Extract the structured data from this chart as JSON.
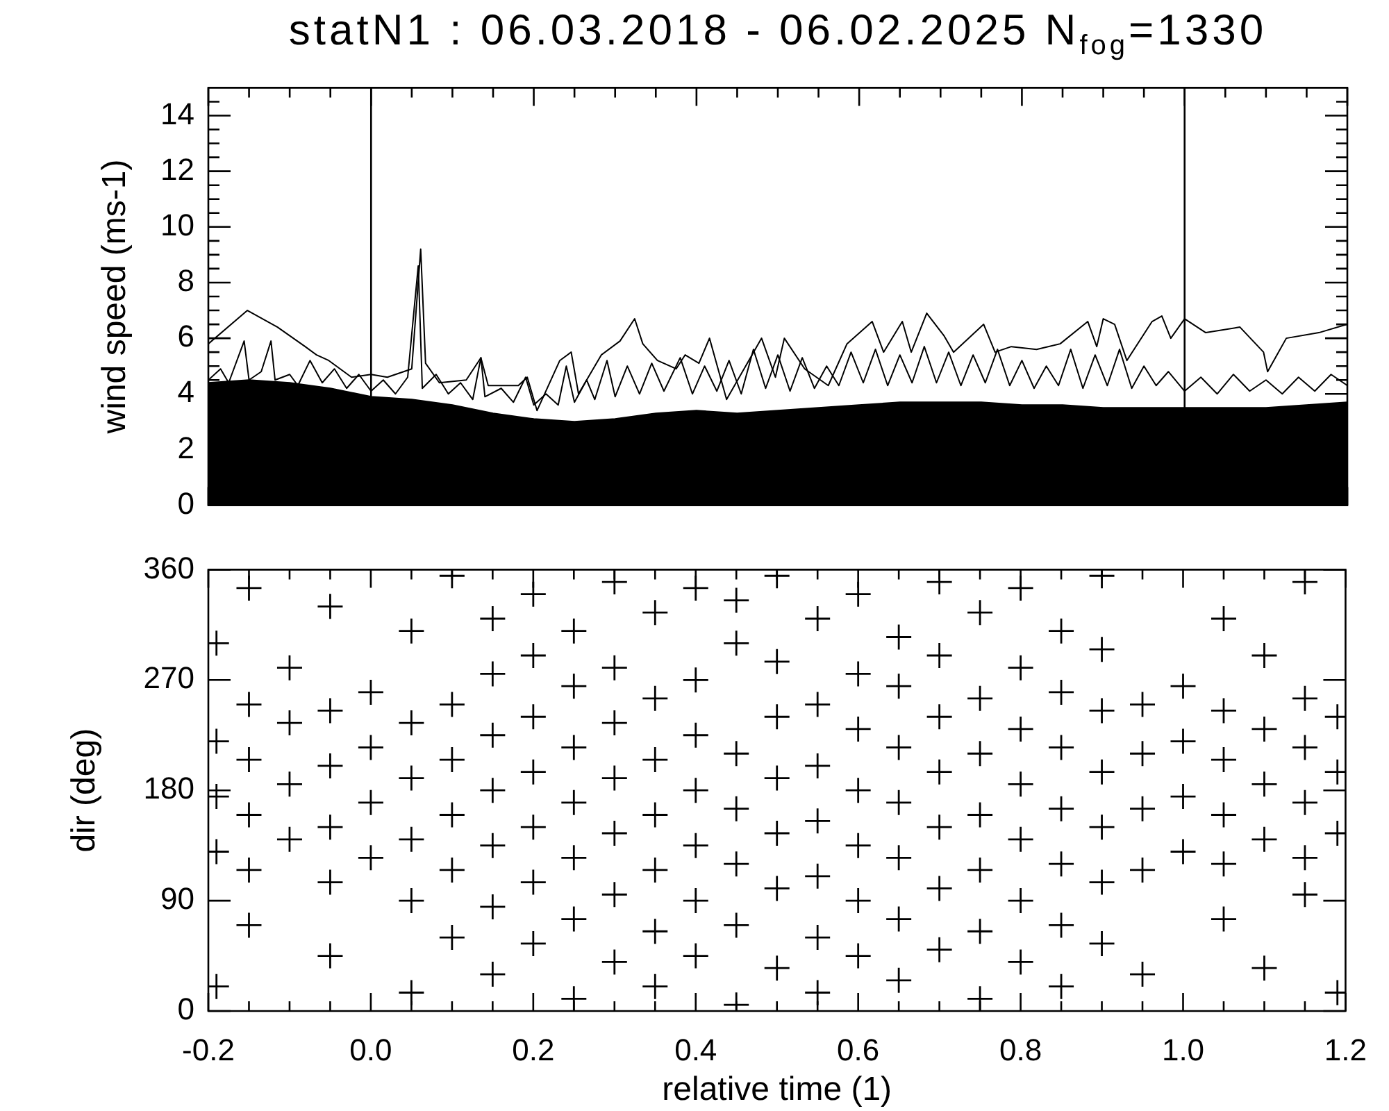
{
  "chart_data": [
    {
      "type": "line",
      "title": "statN1 : 06.03.2018 - 06.02.2025 N$_{fog}$=1330",
      "ylabel": "wind speed (ms-1)",
      "xlim": [
        -0.2,
        1.2
      ],
      "ylim": [
        0,
        15
      ],
      "xticks": [
        -0.2,
        {
          "value": -0.15,
          "label": null
        },
        {
          "value": -0.1,
          "label": null
        },
        {
          "value": -0.05,
          "label": null
        },
        0,
        {
          "value": 0.05,
          "label": null
        },
        {
          "value": 0.1,
          "label": null
        },
        {
          "value": 0.15,
          "label": null
        },
        0.2,
        {
          "value": 0.25,
          "label": null
        },
        {
          "value": 0.3,
          "label": null
        },
        {
          "value": 0.35,
          "label": null
        },
        0.4,
        {
          "value": 0.45,
          "label": null
        },
        {
          "value": 0.5,
          "label": null
        },
        {
          "value": 0.55,
          "label": null
        },
        0.6,
        {
          "value": 0.65,
          "label": null
        },
        {
          "value": 0.7,
          "label": null
        },
        {
          "value": 0.75,
          "label": null
        },
        0.8,
        {
          "value": 0.85,
          "label": null
        },
        {
          "value": 0.9,
          "label": null
        },
        {
          "value": 0.95,
          "label": null
        },
        1,
        {
          "value": 1.05,
          "label": null
        },
        {
          "value": 1.1,
          "label": null
        },
        {
          "value": 1.15,
          "label": null
        },
        1.2
      ],
      "yticks": [
        0,
        {
          "value": 0.5,
          "label": null
        },
        {
          "value": 1,
          "label": null
        },
        {
          "value": 1.5,
          "label": null
        },
        2,
        {
          "value": 2.5,
          "label": null
        },
        {
          "value": 3,
          "label": null
        },
        {
          "value": 3.5,
          "label": null
        },
        4,
        {
          "value": 4.5,
          "label": null
        },
        {
          "value": 5,
          "label": null
        },
        {
          "value": 5.5,
          "label": null
        },
        6,
        {
          "value": 6.5,
          "label": null
        },
        {
          "value": 7,
          "label": null
        },
        {
          "value": 7.5,
          "label": null
        },
        8,
        {
          "value": 8.5,
          "label": null
        },
        {
          "value": 9,
          "label": null
        },
        {
          "value": 9.5,
          "label": null
        },
        10,
        {
          "value": 10.5,
          "label": null
        },
        {
          "value": 11,
          "label": null
        },
        {
          "value": 11.5,
          "label": null
        },
        12,
        {
          "value": 12.5,
          "label": null
        },
        {
          "value": 13,
          "label": null
        },
        {
          "value": 13.5,
          "label": null
        },
        14,
        {
          "value": 14.5,
          "label": null
        }
      ],
      "tick_labels": "y",
      "marker": "none",
      "ref_lines": [
        {
          "axis": "x",
          "value": 0,
          "color": "#000000"
        },
        {
          "axis": "x",
          "value": 1,
          "color": "#000000"
        }
      ],
      "series": [
        {
          "type": "area",
          "color": "#000000",
          "x": [
            -0.2,
            -0.15,
            -0.1,
            -0.05,
            0,
            0.05,
            0.1,
            0.15,
            0.2,
            0.25,
            0.3,
            0.35,
            0.4,
            0.45,
            0.5,
            0.55,
            0.6,
            0.65,
            0.7,
            0.75,
            0.8,
            0.85,
            0.9,
            0.95,
            1,
            1.05,
            1.1,
            1.15,
            1.2
          ],
          "values": [
            4.4,
            4.5,
            4.4,
            4.2,
            3.9,
            3.8,
            3.6,
            3.3,
            3.1,
            3.0,
            3.1,
            3.3,
            3.4,
            3.3,
            3.4,
            3.5,
            3.6,
            3.7,
            3.7,
            3.7,
            3.6,
            3.6,
            3.5,
            3.5,
            3.5,
            3.5,
            3.5,
            3.6,
            3.7
          ]
        },
        {
          "type": "line",
          "color": "#000000",
          "x": [
            -0.2,
            -0.185,
            -0.175,
            -0.156,
            -0.15,
            -0.135,
            -0.123,
            -0.118,
            -0.1,
            -0.09,
            -0.075,
            -0.06,
            -0.045,
            -0.03,
            -0.015,
            0,
            0.015,
            0.03,
            0.045,
            0.058,
            0.063,
            0.08,
            0.095,
            0.11,
            0.125,
            0.135,
            0.14,
            0.16,
            0.175,
            0.19,
            0.2,
            0.215,
            0.23,
            0.24,
            0.25,
            0.265,
            0.275,
            0.29,
            0.3,
            0.315,
            0.33,
            0.345,
            0.36,
            0.38,
            0.395,
            0.41,
            0.425,
            0.44,
            0.455,
            0.47,
            0.485,
            0.5,
            0.515,
            0.53,
            0.545,
            0.56,
            0.575,
            0.59,
            0.605,
            0.62,
            0.635,
            0.65,
            0.665,
            0.68,
            0.695,
            0.71,
            0.725,
            0.74,
            0.755,
            0.77,
            0.785,
            0.8,
            0.815,
            0.83,
            0.845,
            0.86,
            0.875,
            0.89,
            0.905,
            0.92,
            0.935,
            0.95,
            0.965,
            0.98,
            1,
            1.02,
            1.04,
            1.06,
            1.08,
            1.1,
            1.12,
            1.14,
            1.16,
            1.18,
            1.2
          ],
          "values": [
            4.5,
            4.9,
            4.4,
            5.9,
            4.5,
            4.8,
            5.9,
            4.5,
            4.7,
            4.3,
            5.2,
            4.4,
            4.9,
            4.2,
            4.7,
            4.1,
            4.5,
            4.0,
            4.6,
            8.6,
            4.2,
            4.7,
            4.0,
            4.4,
            3.8,
            5.3,
            3.9,
            4.2,
            3.7,
            4.6,
            3.6,
            4.0,
            3.6,
            5.0,
            3.7,
            4.5,
            3.8,
            5.2,
            3.9,
            5.0,
            4.0,
            5.1,
            4.1,
            5.3,
            4.0,
            5.0,
            4.1,
            5.2,
            4.0,
            5.6,
            4.2,
            5.4,
            4.1,
            5.3,
            4.2,
            5.0,
            4.3,
            5.5,
            4.4,
            5.6,
            4.3,
            5.4,
            4.4,
            5.7,
            4.4,
            5.5,
            4.3,
            5.4,
            4.4,
            5.6,
            4.3,
            5.2,
            4.2,
            5.0,
            4.3,
            5.6,
            4.2,
            5.4,
            4.3,
            5.6,
            4.2,
            5.0,
            4.3,
            4.8,
            4.1,
            4.6,
            4.0,
            4.7,
            4.1,
            4.5,
            4.0,
            4.6,
            4.1,
            4.7,
            4.3
          ]
        },
        {
          "type": "line",
          "color": "#000000",
          "x": [
            -0.2,
            -0.152,
            -0.115,
            -0.081,
            -0.067,
            -0.052,
            -0.024,
            0,
            0.02,
            0.05,
            0.061,
            0.067,
            0.084,
            0.117,
            0.135,
            0.144,
            0.181,
            0.192,
            0.204,
            0.232,
            0.246,
            0.255,
            0.283,
            0.306,
            0.324,
            0.334,
            0.352,
            0.375,
            0.386,
            0.403,
            0.416,
            0.437,
            0.48,
            0.497,
            0.508,
            0.533,
            0.562,
            0.585,
            0.616,
            0.63,
            0.653,
            0.664,
            0.683,
            0.704,
            0.716,
            0.753,
            0.767,
            0.787,
            0.818,
            0.847,
            0.881,
            0.892,
            0.9,
            0.914,
            0.929,
            0.96,
            0.972,
            0.983,
            1,
            1.026,
            1.068,
            1.097,
            1.102,
            1.125,
            1.165,
            1.2
          ],
          "values": [
            5.8,
            7.0,
            6.4,
            5.7,
            5.4,
            5.2,
            4.6,
            4.7,
            4.6,
            4.9,
            9.2,
            5.1,
            4.4,
            4.5,
            5.3,
            4.3,
            4.3,
            4.6,
            3.4,
            5.2,
            5.5,
            4.0,
            5.4,
            5.9,
            6.7,
            5.8,
            5.2,
            4.9,
            5.4,
            5.1,
            6.0,
            3.8,
            6.0,
            4.6,
            6.0,
            4.9,
            4.3,
            5.8,
            6.6,
            5.5,
            6.6,
            5.5,
            6.9,
            6.1,
            5.5,
            6.5,
            5.5,
            5.7,
            5.6,
            5.8,
            6.6,
            5.7,
            6.7,
            6.5,
            5.2,
            6.6,
            6.8,
            6.0,
            6.7,
            6.2,
            6.4,
            5.5,
            4.8,
            6.0,
            6.2,
            6.5
          ]
        }
      ]
    },
    {
      "type": "scatter",
      "xlabel": "relative time (1)",
      "ylabel": "dir (deg)",
      "xlim": [
        -0.2,
        1.2
      ],
      "ylim": [
        0,
        360
      ],
      "xticks": [
        -0.2,
        {
          "value": -0.15,
          "label": null
        },
        {
          "value": -0.1,
          "label": null
        },
        {
          "value": -0.05,
          "label": null
        },
        {
          "value": 0,
          "label": "0.0"
        },
        {
          "value": 0.05,
          "label": null
        },
        {
          "value": 0.1,
          "label": null
        },
        {
          "value": 0.15,
          "label": null
        },
        0.2,
        {
          "value": 0.25,
          "label": null
        },
        {
          "value": 0.3,
          "label": null
        },
        {
          "value": 0.35,
          "label": null
        },
        0.4,
        {
          "value": 0.45,
          "label": null
        },
        {
          "value": 0.5,
          "label": null
        },
        {
          "value": 0.55,
          "label": null
        },
        0.6,
        {
          "value": 0.65,
          "label": null
        },
        {
          "value": 0.7,
          "label": null
        },
        {
          "value": 0.75,
          "label": null
        },
        0.8,
        {
          "value": 0.85,
          "label": null
        },
        {
          "value": 0.9,
          "label": null
        },
        {
          "value": 0.95,
          "label": null
        },
        {
          "value": 1,
          "label": "1.0"
        },
        {
          "value": 1.05,
          "label": null
        },
        {
          "value": 1.1,
          "label": null
        },
        {
          "value": 1.15,
          "label": null
        },
        1.2
      ],
      "yticks": [
        0,
        90,
        180,
        270,
        360
      ],
      "marker": "cross",
      "series": [
        {
          "color": "#000000",
          "x": [
            -0.19,
            -0.19,
            -0.19,
            -0.19,
            -0.19,
            -0.15,
            -0.15,
            -0.15,
            -0.15,
            -0.15,
            -0.15,
            -0.1,
            -0.1,
            -0.1,
            -0.1,
            -0.05,
            -0.05,
            -0.05,
            -0.05,
            -0.05,
            -0.05,
            0,
            0,
            0,
            0,
            0.05,
            0.05,
            0.05,
            0.05,
            0.05,
            0.05,
            0.1,
            0.1,
            0.1,
            0.1,
            0.1,
            0.1,
            0.15,
            0.15,
            0.15,
            0.15,
            0.15,
            0.15,
            0.15,
            0.2,
            0.2,
            0.2,
            0.2,
            0.2,
            0.2,
            0.2,
            0.25,
            0.25,
            0.25,
            0.25,
            0.25,
            0.25,
            0.25,
            0.3,
            0.3,
            0.3,
            0.3,
            0.3,
            0.3,
            0.3,
            0.35,
            0.35,
            0.35,
            0.35,
            0.35,
            0.35,
            0.35,
            0.4,
            0.4,
            0.4,
            0.4,
            0.4,
            0.4,
            0.4,
            0.45,
            0.45,
            0.45,
            0.45,
            0.45,
            0.45,
            0.45,
            0.5,
            0.5,
            0.5,
            0.5,
            0.5,
            0.5,
            0.5,
            0.55,
            0.55,
            0.55,
            0.55,
            0.55,
            0.55,
            0.55,
            0.6,
            0.6,
            0.6,
            0.6,
            0.6,
            0.6,
            0.6,
            0.65,
            0.65,
            0.65,
            0.65,
            0.65,
            0.65,
            0.65,
            0.7,
            0.7,
            0.7,
            0.7,
            0.7,
            0.7,
            0.7,
            0.75,
            0.75,
            0.75,
            0.75,
            0.75,
            0.75,
            0.75,
            0.8,
            0.8,
            0.8,
            0.8,
            0.8,
            0.8,
            0.8,
            0.85,
            0.85,
            0.85,
            0.85,
            0.85,
            0.85,
            0.85,
            0.9,
            0.9,
            0.9,
            0.9,
            0.9,
            0.9,
            0.9,
            0.95,
            0.95,
            0.95,
            0.95,
            0.95,
            1,
            1,
            1,
            1,
            1.05,
            1.05,
            1.05,
            1.05,
            1.05,
            1.05,
            1.1,
            1.1,
            1.1,
            1.1,
            1.1,
            1.15,
            1.15,
            1.15,
            1.15,
            1.15,
            1.15,
            1.19,
            1.19,
            1.19,
            1.19
          ],
          "values": [
            20,
            130,
            175,
            220,
            300,
            70,
            115,
            160,
            205,
            250,
            345,
            140,
            185,
            235,
            280,
            45,
            105,
            150,
            200,
            245,
            330,
            125,
            170,
            215,
            260,
            15,
            90,
            140,
            190,
            235,
            310,
            60,
            115,
            160,
            205,
            250,
            355,
            30,
            85,
            135,
            180,
            225,
            275,
            320,
            55,
            105,
            150,
            195,
            240,
            290,
            340,
            10,
            75,
            125,
            170,
            215,
            265,
            310,
            40,
            95,
            145,
            190,
            235,
            280,
            350,
            20,
            65,
            115,
            160,
            205,
            255,
            325,
            45,
            90,
            135,
            180,
            225,
            270,
            345,
            5,
            70,
            120,
            165,
            210,
            300,
            335,
            35,
            100,
            145,
            190,
            240,
            285,
            355,
            15,
            60,
            110,
            155,
            200,
            250,
            320,
            45,
            90,
            135,
            180,
            230,
            275,
            340,
            25,
            75,
            125,
            170,
            215,
            265,
            305,
            50,
            100,
            150,
            195,
            240,
            290,
            350,
            10,
            65,
            115,
            160,
            210,
            255,
            325,
            40,
            90,
            140,
            185,
            230,
            280,
            345,
            20,
            70,
            120,
            165,
            215,
            260,
            310,
            55,
            105,
            150,
            195,
            245,
            295,
            355,
            30,
            115,
            165,
            210,
            250,
            130,
            175,
            220,
            265,
            75,
            120,
            160,
            205,
            245,
            320,
            35,
            140,
            185,
            230,
            290,
            95,
            125,
            170,
            215,
            255,
            350,
            15,
            145,
            195,
            240
          ]
        }
      ]
    }
  ]
}
